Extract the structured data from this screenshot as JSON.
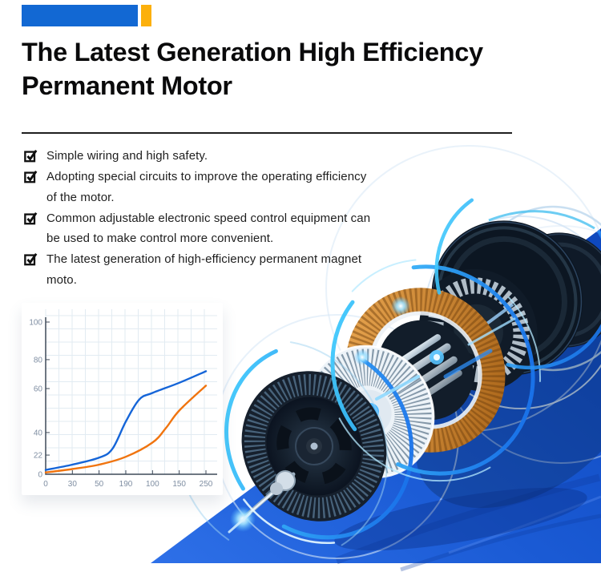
{
  "page": {
    "background": "#ffffff"
  },
  "accent_bars": {
    "blue": "#1268d3",
    "yellow": "#fcb00c"
  },
  "header": {
    "title_line1": "The Latest Generation High Efficiency",
    "title_line2": "Permanent Motor"
  },
  "features": {
    "items": [
      {
        "text": "Simple wiring and high safety."
      },
      {
        "text": "Adopting special circuits to improve the operating efficiency of the motor."
      },
      {
        "text": "Common adjustable electronic speed control equipment can be used to make control more convenient."
      },
      {
        "text": "The latest generation of high-efficiency permanent magnet moto."
      }
    ]
  },
  "chart_data": {
    "type": "line",
    "title": "",
    "xlabel": "",
    "ylabel": "",
    "x_tick_labels": [
      "0",
      "30",
      "50",
      "190",
      "100",
      "150",
      "250"
    ],
    "y_tick_labels": [
      "0",
      "22",
      "40",
      "60",
      "80",
      "100"
    ],
    "ylim": [
      0,
      100
    ],
    "grid": true,
    "legend": false,
    "y_axis_anchor_fractions": [
      [
        0,
        1.0
      ],
      [
        22,
        0.874
      ],
      [
        40,
        0.726
      ],
      [
        60,
        0.437
      ],
      [
        80,
        0.247
      ],
      [
        100,
        0.0
      ]
    ],
    "series": [
      {
        "name": "blue-efficiency-curve",
        "color": "#1565d8",
        "x_ticks": [
          0,
          1,
          2,
          2.5,
          3,
          3.5,
          4,
          5,
          6
        ],
        "values": [
          5,
          11,
          19,
          27,
          45,
          55,
          58,
          64,
          72
        ]
      },
      {
        "name": "orange-reference-curve",
        "color": "#f0740f",
        "x_ticks": [
          0,
          1,
          2,
          3,
          4,
          4.5,
          5,
          6
        ],
        "values": [
          2,
          6,
          11,
          20,
          32,
          42,
          50,
          62
        ]
      }
    ],
    "axis_color": "#3f4a58",
    "grid_color": "#e2ebf2",
    "tick_label_color": "#7f8ea2"
  },
  "hero": {
    "illustration": "exploded-permanent-magnet-motor",
    "glow_color": "#2fc8f6",
    "copper_color": "#c27627",
    "wedge_top_color": "#2e70e8",
    "wedge_bottom_color": "#0d47bd"
  }
}
